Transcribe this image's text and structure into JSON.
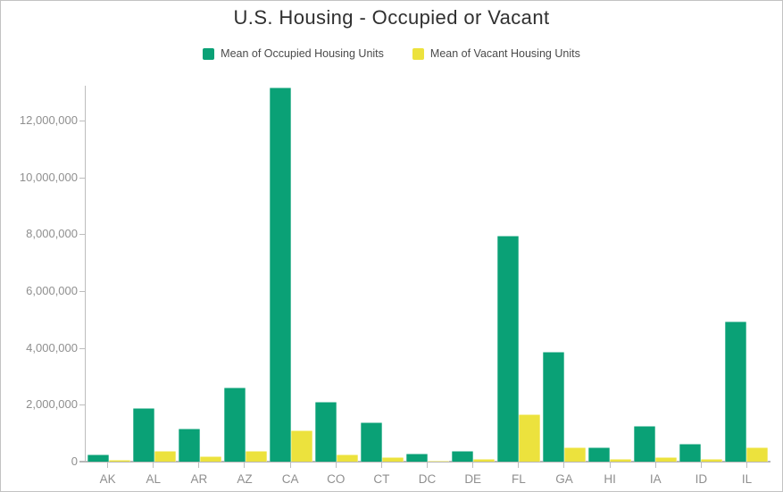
{
  "colors": {
    "occupied_series": "#0aa176",
    "vacant_series": "#ece23d",
    "axis_line": "#bdbdbd",
    "tick_label": "#8f8f8f",
    "title_text": "#303030",
    "legend_text": "#4a4a4a",
    "frame_border": "#c2c2c2"
  },
  "chart_data": {
    "type": "bar",
    "title": "U.S. Housing - Occupied or Vacant",
    "xlabel": "",
    "ylabel": "",
    "grid": false,
    "legend_position": "top",
    "categories": [
      "AK",
      "AL",
      "AR",
      "AZ",
      "CA",
      "CO",
      "CT",
      "DC",
      "DE",
      "FL",
      "GA",
      "HI",
      "IA",
      "ID",
      "IL"
    ],
    "series": [
      {
        "name": "Mean of Occupied Housing Units",
        "color": "#0aa176",
        "values": [
          250000,
          1880000,
          1170000,
          2620000,
          13150000,
          2100000,
          1380000,
          290000,
          380000,
          7950000,
          3850000,
          490000,
          1260000,
          630000,
          4920000
        ]
      },
      {
        "name": "Mean of Vacant Housing Units",
        "color": "#ece23d",
        "values": [
          70000,
          390000,
          200000,
          390000,
          1090000,
          240000,
          150000,
          40000,
          100000,
          1650000,
          510000,
          90000,
          150000,
          90000,
          490000
        ]
      }
    ],
    "y_ticks": [
      {
        "value": 0,
        "label": "0"
      },
      {
        "value": 2000000,
        "label": "2,000,000"
      },
      {
        "value": 4000000,
        "label": "4,000,000"
      },
      {
        "value": 6000000,
        "label": "6,000,000"
      },
      {
        "value": 8000000,
        "label": "8,000,000"
      },
      {
        "value": 10000000,
        "label": "10,000,000"
      },
      {
        "value": 12000000,
        "label": "12,000,000"
      }
    ],
    "ylim": [
      0,
      13220000
    ]
  }
}
